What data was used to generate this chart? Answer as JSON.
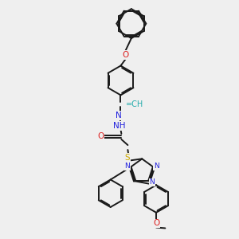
{
  "background_color": "#efefef",
  "bond_color": "#1a1a1a",
  "N_color": "#2020dd",
  "O_color": "#dd2020",
  "S_color": "#ccaa00",
  "CH_color": "#20aaaa",
  "figsize": [
    3.0,
    3.0
  ],
  "dpi": 100,
  "xlim": [
    0,
    10
  ],
  "ylim": [
    0,
    10
  ]
}
